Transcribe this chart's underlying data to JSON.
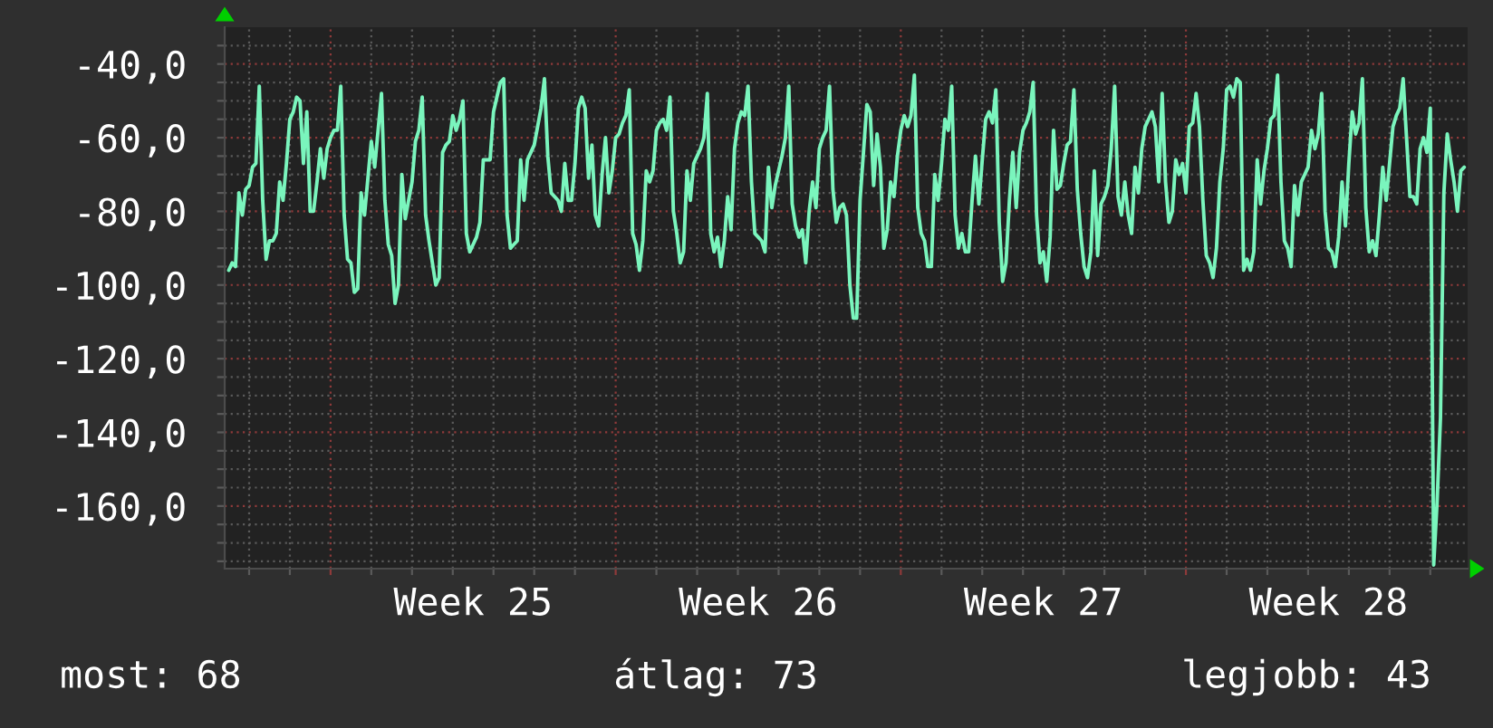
{
  "chart_data": {
    "type": "line",
    "categories": [
      null,
      null,
      null,
      null,
      null,
      null,
      null,
      null,
      null,
      null,
      null,
      null,
      null,
      null,
      null,
      null,
      null,
      null,
      null,
      null,
      null,
      null,
      null,
      null,
      null,
      null,
      null,
      null,
      null,
      null,
      null,
      null,
      null,
      null,
      null,
      null,
      null,
      null,
      null,
      null,
      null,
      null,
      null,
      null,
      null,
      null,
      null,
      null,
      null,
      null,
      null,
      null,
      null,
      null,
      null,
      null,
      null,
      null,
      null,
      null,
      null,
      null,
      null,
      null,
      null,
      null,
      null,
      null,
      null,
      null,
      null,
      null,
      "Week 25",
      null,
      null,
      null,
      null,
      null,
      null,
      null,
      null,
      null,
      null,
      null,
      null,
      null,
      null,
      null,
      null,
      null,
      null,
      null,
      null,
      null,
      null,
      null,
      null,
      null,
      null,
      null,
      null,
      null,
      null,
      null,
      null,
      null,
      null,
      null,
      null,
      null,
      null,
      null,
      null,
      null,
      null,
      null,
      null,
      null,
      null,
      null,
      null,
      null,
      null,
      null,
      null,
      null,
      null,
      null,
      null,
      null,
      null,
      null,
      null,
      null,
      null,
      null,
      null,
      null,
      null,
      null,
      null,
      null,
      null,
      null,
      null,
      null,
      null,
      null,
      null,
      null,
      null,
      null,
      null,
      null,
      null,
      null,
      "Week 26",
      null,
      null,
      null,
      null,
      null,
      null,
      null,
      null,
      null,
      null,
      null,
      null,
      null,
      null,
      null,
      null,
      null,
      null,
      null,
      null,
      null,
      null,
      null,
      null,
      null,
      null,
      null,
      null,
      null,
      null,
      null,
      null,
      null,
      null,
      null,
      null,
      null,
      null,
      null,
      null,
      null,
      null,
      null,
      null,
      null,
      null,
      null,
      null,
      null,
      null,
      null,
      null,
      null,
      null,
      null,
      null,
      null,
      null,
      null,
      null,
      null,
      null,
      null,
      null,
      null,
      null,
      null,
      null,
      null,
      null,
      null,
      null,
      null,
      null,
      null,
      null,
      null,
      null,
      null,
      null,
      null,
      null,
      null,
      "Week 27",
      null,
      null,
      null,
      null,
      null,
      null,
      null,
      null,
      null,
      null,
      null,
      null,
      null,
      null,
      null,
      null,
      null,
      null,
      null,
      null,
      null,
      null,
      null,
      null,
      null,
      null,
      null,
      null,
      null,
      null,
      null,
      null,
      null,
      null,
      null,
      null,
      null,
      null,
      null,
      null,
      null,
      null,
      null,
      null,
      null,
      null,
      null,
      null,
      null,
      null,
      null,
      null,
      null,
      null,
      null,
      null,
      null,
      null,
      null,
      null,
      null,
      null,
      null,
      null,
      null,
      null,
      null,
      null,
      null,
      null,
      null,
      null,
      null,
      null,
      null,
      null,
      null,
      null,
      null,
      null,
      null,
      null,
      null,
      "Week 28",
      null,
      null,
      null,
      null,
      null,
      null,
      null,
      null,
      null,
      null,
      null,
      null,
      null,
      null,
      null,
      null,
      null,
      null,
      null,
      null,
      null,
      null,
      null,
      null,
      null,
      null,
      null,
      null,
      null,
      null,
      null,
      null,
      null,
      null,
      null,
      null,
      null,
      null,
      null,
      null
    ],
    "series": [
      {
        "color": "#7af5bd",
        "values": [
          -96,
          -94,
          -95,
          -75,
          -81,
          -74,
          -73,
          -68,
          -67,
          -46,
          -77,
          -93,
          -88,
          -88,
          -86,
          -72,
          -77,
          -67,
          -55,
          -53,
          -49,
          -50,
          -67,
          -53,
          -80,
          -80,
          -72,
          -63,
          -71,
          -63,
          -60,
          -58,
          -58,
          -46,
          -81,
          -93,
          -94,
          -102,
          -101,
          -75,
          -81,
          -71,
          -61,
          -68,
          -58,
          -48,
          -77,
          -89,
          -92,
          -105,
          -100,
          -70,
          -82,
          -77,
          -72,
          -61,
          -58,
          -49,
          -81,
          -88,
          -94,
          -100,
          -98,
          -64,
          -62,
          -61,
          -54,
          -58,
          -55,
          -50,
          -86,
          -91,
          -89,
          -87,
          -83,
          -66,
          -66,
          -66,
          -53,
          -49,
          -45,
          -44,
          -81,
          -90,
          -89,
          -88,
          -66,
          -77,
          -66,
          -64,
          -62,
          -57,
          -52,
          -44,
          -65,
          -75,
          -76,
          -77,
          -80,
          -67,
          -77,
          -77,
          -67,
          -52,
          -49,
          -52,
          -71,
          -62,
          -81,
          -84,
          -70,
          -60,
          -75,
          -69,
          -60,
          -59,
          -56,
          -54,
          -47,
          -86,
          -89,
          -96,
          -88,
          -69,
          -72,
          -69,
          -58,
          -56,
          -55,
          -58,
          -49,
          -80,
          -86,
          -94,
          -91,
          -69,
          -77,
          -67,
          -65,
          -63,
          -60,
          -48,
          -86,
          -91,
          -87,
          -95,
          -88,
          -76,
          -85,
          -63,
          -56,
          -53,
          -54,
          -46,
          -72,
          -86,
          -87,
          -88,
          -91,
          -68,
          -79,
          -73,
          -69,
          -65,
          -60,
          -46,
          -78,
          -84,
          -87,
          -85,
          -94,
          -80,
          -72,
          -79,
          -63,
          -60,
          -58,
          -46,
          -74,
          -83,
          -79,
          -78,
          -81,
          -100,
          -109,
          -109,
          -77,
          -64,
          -51,
          -53,
          -73,
          -59,
          -68,
          -90,
          -85,
          -72,
          -76,
          -65,
          -58,
          -54,
          -57,
          -54,
          -43,
          -79,
          -86,
          -88,
          -95,
          -95,
          -70,
          -77,
          -67,
          -55,
          -58,
          -46,
          -81,
          -90,
          -86,
          -91,
          -91,
          -77,
          -65,
          -78,
          -66,
          -55,
          -53,
          -56,
          -47,
          -83,
          -99,
          -94,
          -77,
          -64,
          -79,
          -64,
          -58,
          -56,
          -53,
          -45,
          -81,
          -94,
          -91,
          -99,
          -87,
          -58,
          -74,
          -73,
          -67,
          -62,
          -61,
          -47,
          -74,
          -86,
          -95,
          -98,
          -91,
          -69,
          -92,
          -78,
          -76,
          -73,
          -63,
          -46,
          -76,
          -81,
          -72,
          -81,
          -86,
          -68,
          -75,
          -63,
          -57,
          -55,
          -53,
          -57,
          -72,
          -48,
          -72,
          -83,
          -80,
          -66,
          -70,
          -67,
          -75,
          -57,
          -56,
          -48,
          -57,
          -77,
          -92,
          -94,
          -98,
          -90,
          -72,
          -63,
          -47,
          -46,
          -49,
          -44,
          -45,
          -96,
          -93,
          -96,
          -91,
          -66,
          -78,
          -69,
          -63,
          -55,
          -54,
          -43,
          -72,
          -88,
          -90,
          -95,
          -73,
          -81,
          -72,
          -70,
          -68,
          -58,
          -63,
          -59,
          -48,
          -80,
          -90,
          -91,
          -95,
          -87,
          -72,
          -84,
          -67,
          -53,
          -59,
          -56,
          -44,
          -79,
          -91,
          -88,
          -92,
          -81,
          -68,
          -77,
          -67,
          -57,
          -54,
          -52,
          -44,
          -60,
          -76,
          -76,
          -78,
          -63,
          -60,
          -64,
          -52,
          -176,
          -159,
          -136,
          -75,
          -59,
          -66,
          -72,
          -80,
          -69,
          -68
        ]
      }
    ],
    "ylim": [
      -177,
      -30
    ],
    "yticks": [
      {
        "value": -175,
        "label": null
      },
      {
        "value": -170,
        "label": null
      },
      {
        "value": -165,
        "label": null
      },
      {
        "value": -160,
        "label": "-160,0"
      },
      {
        "value": -155,
        "label": null
      },
      {
        "value": -150,
        "label": null
      },
      {
        "value": -145,
        "label": null
      },
      {
        "value": -140,
        "label": "-140,0"
      },
      {
        "value": -135,
        "label": null
      },
      {
        "value": -130,
        "label": null
      },
      {
        "value": -125,
        "label": null
      },
      {
        "value": -120,
        "label": "-120,0"
      },
      {
        "value": -115,
        "label": null
      },
      {
        "value": -110,
        "label": null
      },
      {
        "value": -105,
        "label": null
      },
      {
        "value": -100,
        "label": "-100,0"
      },
      {
        "value": -95,
        "label": null
      },
      {
        "value": -90,
        "label": null
      },
      {
        "value": -85,
        "label": null
      },
      {
        "value": -80,
        "label": "-80,0"
      },
      {
        "value": -75,
        "label": null
      },
      {
        "value": -70,
        "label": null
      },
      {
        "value": -65,
        "label": null
      },
      {
        "value": -60,
        "label": "-60,0"
      },
      {
        "value": -55,
        "label": null
      },
      {
        "value": -50,
        "label": null
      },
      {
        "value": -45,
        "label": null
      },
      {
        "value": -40,
        "label": "-40,0"
      },
      {
        "value": -35,
        "label": null
      }
    ],
    "grid": true,
    "line_style": "solid",
    "annotations": [
      "most: 68",
      "átlag: 73",
      "legjobb: 43"
    ]
  }
}
